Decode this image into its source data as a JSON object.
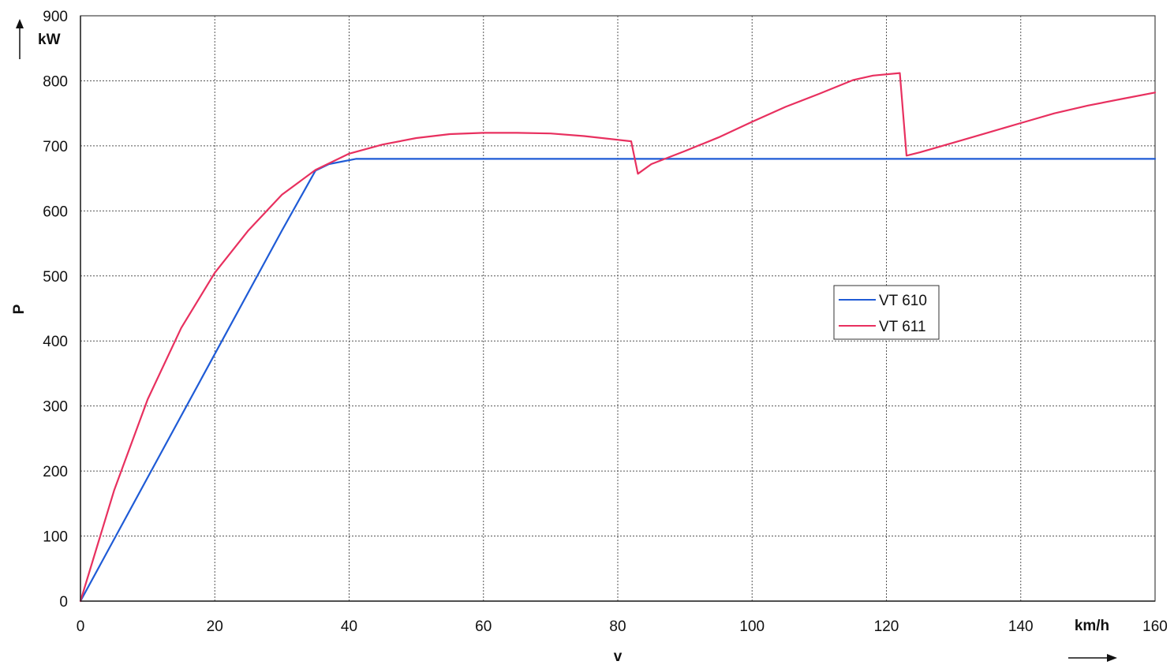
{
  "chart_data": {
    "type": "line",
    "title": "",
    "xlabel": "v",
    "ylabel": "P",
    "x_unit": "km/h",
    "y_unit": "kW",
    "xlim": [
      0,
      160
    ],
    "ylim": [
      0,
      900
    ],
    "x_ticks": [
      "0",
      "20",
      "40",
      "60",
      "80",
      "100",
      "120",
      "140",
      "160"
    ],
    "y_ticks": [
      "0",
      "100",
      "200",
      "300",
      "400",
      "500",
      "600",
      "700",
      "800",
      "900"
    ],
    "grid": true,
    "legend_position": "center-right",
    "series": [
      {
        "name": "VT 610",
        "color": "#1f5bd6",
        "points": [
          [
            0,
            0
          ],
          [
            10,
            190
          ],
          [
            20,
            380
          ],
          [
            30,
            570
          ],
          [
            35,
            662
          ],
          [
            37,
            672
          ],
          [
            41,
            680
          ],
          [
            60,
            680
          ],
          [
            80,
            680
          ],
          [
            100,
            680
          ],
          [
            120,
            680
          ],
          [
            140,
            680
          ],
          [
            160,
            680
          ]
        ]
      },
      {
        "name": "VT 611",
        "color": "#e8305f",
        "points": [
          [
            0,
            0
          ],
          [
            5,
            170
          ],
          [
            10,
            310
          ],
          [
            15,
            420
          ],
          [
            20,
            505
          ],
          [
            25,
            570
          ],
          [
            30,
            625
          ],
          [
            35,
            663
          ],
          [
            40,
            688
          ],
          [
            45,
            702
          ],
          [
            50,
            712
          ],
          [
            55,
            718
          ],
          [
            60,
            720
          ],
          [
            65,
            720
          ],
          [
            70,
            719
          ],
          [
            75,
            715
          ],
          [
            82,
            707
          ],
          [
            83,
            657
          ],
          [
            85,
            672
          ],
          [
            90,
            692
          ],
          [
            95,
            713
          ],
          [
            100,
            737
          ],
          [
            105,
            760
          ],
          [
            110,
            780
          ],
          [
            115,
            801
          ],
          [
            118,
            808
          ],
          [
            122,
            812
          ],
          [
            123,
            685
          ],
          [
            125,
            690
          ],
          [
            130,
            705
          ],
          [
            135,
            720
          ],
          [
            140,
            735
          ],
          [
            145,
            750
          ],
          [
            150,
            762
          ],
          [
            155,
            772
          ],
          [
            160,
            782
          ]
        ]
      }
    ]
  }
}
